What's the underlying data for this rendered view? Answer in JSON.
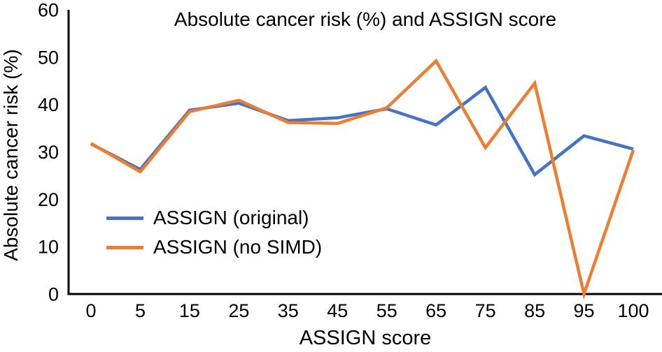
{
  "chart_data": {
    "type": "line",
    "title": "Absolute cancer risk (%) and ASSIGN score",
    "xlabel": "ASSIGN score",
    "ylabel": "Absolute cancer risk (%)",
    "categories": [
      "0",
      "5",
      "15",
      "25",
      "35",
      "45",
      "55",
      "65",
      "75",
      "85",
      "95",
      "100"
    ],
    "series": [
      {
        "name": "ASSIGN (original)",
        "color": "#4472C4",
        "values": [
          31.7,
          26.3,
          38.8,
          40.3,
          36.6,
          37.2,
          39.1,
          35.7,
          43.6,
          25.2,
          33.4,
          30.6
        ]
      },
      {
        "name": "ASSIGN (no SIMD)",
        "color": "#ED7D31",
        "values": [
          31.8,
          25.8,
          38.5,
          40.9,
          36.2,
          36.0,
          39.3,
          49.2,
          30.9,
          44.5,
          0,
          30.4
        ]
      }
    ],
    "y_ticks": [
      0,
      10,
      20,
      30,
      40,
      50,
      60
    ],
    "ylim": [
      0,
      60
    ],
    "grid": false,
    "legend_position": "inside-left-middle",
    "axis_color": "#000000",
    "line_width": 4.5
  }
}
